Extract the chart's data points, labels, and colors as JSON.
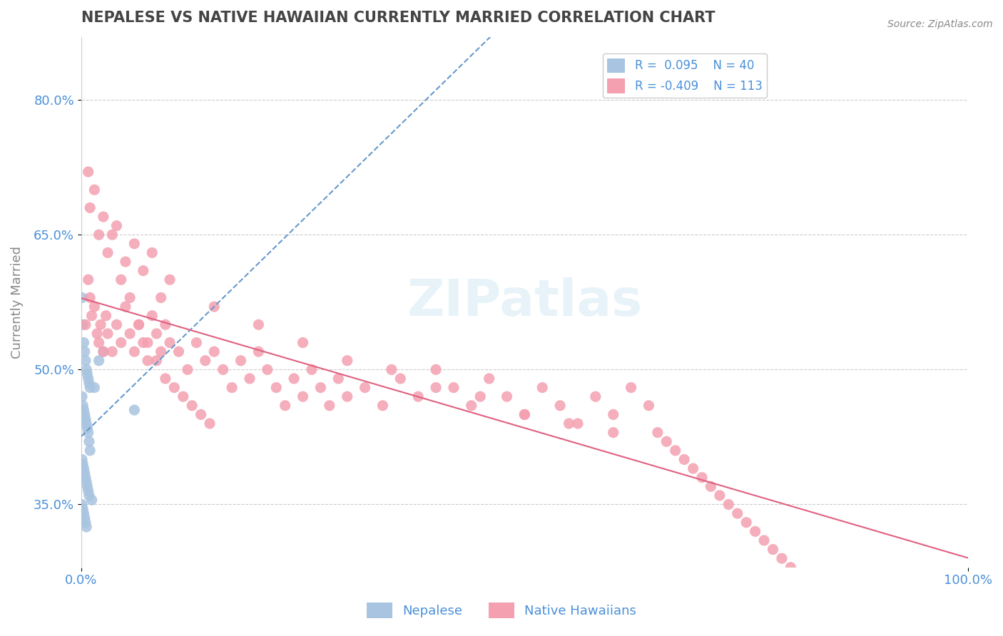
{
  "title": "NEPALESE VS NATIVE HAWAIIAN CURRENTLY MARRIED CORRELATION CHART",
  "source": "Source: ZipAtlas.com",
  "xlabel": "",
  "ylabel": "Currently Married",
  "xlim": [
    0.0,
    1.0
  ],
  "ylim": [
    0.28,
    0.87
  ],
  "yticks": [
    0.35,
    0.5,
    0.65,
    0.8
  ],
  "ytick_labels": [
    "35.0%",
    "50.0%",
    "65.0%",
    "80.0%"
  ],
  "xticks": [
    0.0,
    1.0
  ],
  "xtick_labels": [
    "0.0%",
    "100.0%"
  ],
  "legend_r1": "R =  0.095",
  "legend_n1": "N = 40",
  "legend_r2": "R = -0.409",
  "legend_n2": "N = 113",
  "color_blue": "#a8c4e0",
  "color_pink": "#f4a0b0",
  "color_blue_line": "#6699cc",
  "color_pink_line": "#e06080",
  "color_axis_labels": "#4a90d9",
  "color_title": "#555555",
  "watermark": "ZIPatlas",
  "nepalese_x": [
    0.001,
    0.002,
    0.003,
    0.004,
    0.005,
    0.006,
    0.007,
    0.008,
    0.009,
    0.01,
    0.001,
    0.002,
    0.003,
    0.004,
    0.005,
    0.006,
    0.007,
    0.008,
    0.009,
    0.01,
    0.001,
    0.002,
    0.003,
    0.004,
    0.005,
    0.006,
    0.007,
    0.008,
    0.009,
    0.012,
    0.001,
    0.002,
    0.003,
    0.004,
    0.005,
    0.006,
    0.015,
    0.02,
    0.025,
    0.06
  ],
  "nepalese_y": [
    0.58,
    0.55,
    0.53,
    0.52,
    0.51,
    0.5,
    0.495,
    0.49,
    0.485,
    0.48,
    0.47,
    0.46,
    0.455,
    0.45,
    0.445,
    0.44,
    0.435,
    0.43,
    0.42,
    0.41,
    0.4,
    0.395,
    0.39,
    0.385,
    0.38,
    0.375,
    0.37,
    0.365,
    0.36,
    0.355,
    0.35,
    0.345,
    0.34,
    0.335,
    0.33,
    0.325,
    0.48,
    0.51,
    0.52,
    0.455
  ],
  "hawaiian_x": [
    0.005,
    0.008,
    0.01,
    0.012,
    0.015,
    0.018,
    0.02,
    0.022,
    0.025,
    0.028,
    0.03,
    0.035,
    0.04,
    0.045,
    0.05,
    0.055,
    0.06,
    0.065,
    0.07,
    0.075,
    0.08,
    0.085,
    0.09,
    0.095,
    0.1,
    0.11,
    0.12,
    0.13,
    0.14,
    0.15,
    0.16,
    0.17,
    0.18,
    0.19,
    0.2,
    0.21,
    0.22,
    0.23,
    0.24,
    0.25,
    0.26,
    0.27,
    0.28,
    0.29,
    0.3,
    0.32,
    0.34,
    0.36,
    0.38,
    0.4,
    0.42,
    0.44,
    0.46,
    0.48,
    0.5,
    0.52,
    0.54,
    0.56,
    0.58,
    0.6,
    0.62,
    0.64,
    0.01,
    0.02,
    0.03,
    0.04,
    0.05,
    0.06,
    0.07,
    0.08,
    0.09,
    0.1,
    0.15,
    0.2,
    0.25,
    0.3,
    0.35,
    0.4,
    0.45,
    0.5,
    0.55,
    0.6,
    0.008,
    0.015,
    0.025,
    0.035,
    0.045,
    0.055,
    0.065,
    0.075,
    0.085,
    0.095,
    0.105,
    0.115,
    0.125,
    0.135,
    0.145,
    0.65,
    0.66,
    0.67,
    0.68,
    0.69,
    0.7,
    0.71,
    0.72,
    0.73,
    0.74,
    0.75,
    0.76,
    0.77,
    0.78,
    0.79,
    0.8
  ],
  "hawaiian_y": [
    0.55,
    0.6,
    0.58,
    0.56,
    0.57,
    0.54,
    0.53,
    0.55,
    0.52,
    0.56,
    0.54,
    0.52,
    0.55,
    0.53,
    0.57,
    0.54,
    0.52,
    0.55,
    0.53,
    0.51,
    0.56,
    0.54,
    0.52,
    0.55,
    0.53,
    0.52,
    0.5,
    0.53,
    0.51,
    0.52,
    0.5,
    0.48,
    0.51,
    0.49,
    0.52,
    0.5,
    0.48,
    0.46,
    0.49,
    0.47,
    0.5,
    0.48,
    0.46,
    0.49,
    0.47,
    0.48,
    0.46,
    0.49,
    0.47,
    0.5,
    0.48,
    0.46,
    0.49,
    0.47,
    0.45,
    0.48,
    0.46,
    0.44,
    0.47,
    0.45,
    0.48,
    0.46,
    0.68,
    0.65,
    0.63,
    0.66,
    0.62,
    0.64,
    0.61,
    0.63,
    0.58,
    0.6,
    0.57,
    0.55,
    0.53,
    0.51,
    0.5,
    0.48,
    0.47,
    0.45,
    0.44,
    0.43,
    0.72,
    0.7,
    0.67,
    0.65,
    0.6,
    0.58,
    0.55,
    0.53,
    0.51,
    0.49,
    0.48,
    0.47,
    0.46,
    0.45,
    0.44,
    0.43,
    0.42,
    0.41,
    0.4,
    0.39,
    0.38,
    0.37,
    0.36,
    0.35,
    0.34,
    0.33,
    0.32,
    0.31,
    0.3,
    0.29,
    0.28
  ]
}
